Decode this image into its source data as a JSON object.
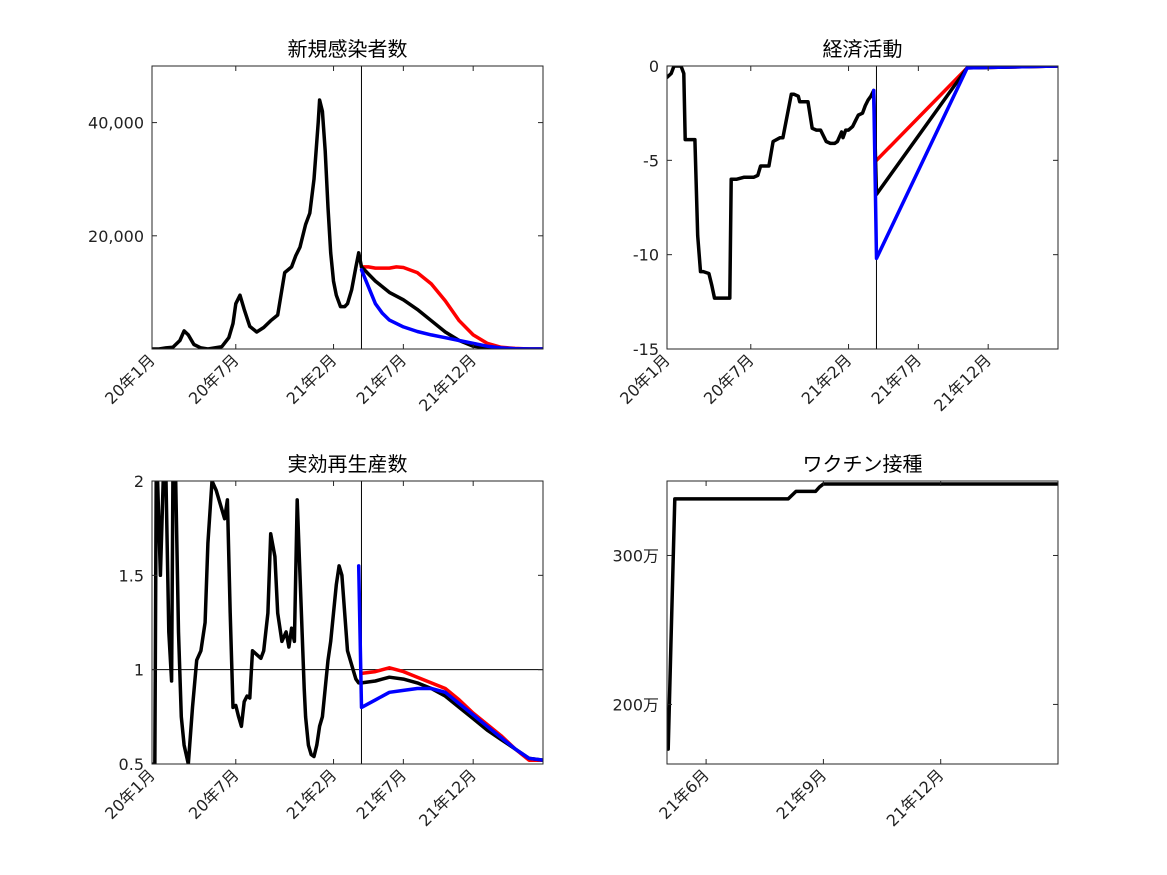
{
  "figure": {
    "background": "#ffffff"
  },
  "colors": {
    "black_series": "#000000",
    "red_series": "#ff0000",
    "blue_series": "#0000ff"
  },
  "chart_data": [
    {
      "type": "line",
      "title": "新規感染者数",
      "xlabel": "",
      "ylabel": "",
      "xlim": [
        0,
        28
      ],
      "ylim": [
        0,
        50000
      ],
      "grid": false,
      "x_ticks": [
        {
          "value": 0,
          "label": "20年1月"
        },
        {
          "value": 6,
          "label": "20年7月"
        },
        {
          "value": 13,
          "label": "21年2月"
        },
        {
          "value": 18,
          "label": "21年7月"
        },
        {
          "value": 23,
          "label": "21年12月"
        }
      ],
      "y_ticks": [
        {
          "value": 20000,
          "label": "20,000"
        },
        {
          "value": 40000,
          "label": "40,000"
        }
      ],
      "vline": 15,
      "hline": null,
      "series": [
        {
          "color": "#ff0000",
          "x": [
            15,
            15.5,
            16,
            17,
            17.5,
            18,
            19,
            20,
            21,
            22,
            23,
            24,
            25,
            26,
            27,
            28
          ],
          "y": [
            14500,
            14500,
            14300,
            14300,
            14500,
            14400,
            13500,
            11500,
            8500,
            5000,
            2500,
            1000,
            300,
            100,
            0,
            0
          ]
        },
        {
          "color": "#000000",
          "x": [
            0,
            0.5,
            1,
            1.5,
            2,
            2.3,
            2.6,
            3,
            3.5,
            4,
            4.5,
            5,
            5.5,
            5.8,
            6,
            6.3,
            6.6,
            7,
            7.5,
            8,
            8.5,
            9,
            9.5,
            10,
            10.3,
            10.6,
            11,
            11.3,
            11.6,
            11.9,
            12,
            12.2,
            12.4,
            12.6,
            12.8,
            13,
            13.2,
            13.5,
            13.8,
            14,
            14.3,
            14.6,
            14.8,
            15,
            16,
            17,
            18,
            19,
            20,
            21,
            22,
            23,
            24,
            25,
            26,
            27,
            28
          ],
          "y": [
            0,
            0,
            200,
            300,
            1500,
            3200,
            2500,
            800,
            200,
            0,
            200,
            400,
            2000,
            4500,
            8000,
            9500,
            7000,
            4000,
            3000,
            3800,
            5000,
            6000,
            13500,
            14500,
            16500,
            18000,
            22000,
            24000,
            30000,
            40000,
            44000,
            42000,
            35000,
            25000,
            17000,
            12000,
            9500,
            7500,
            7500,
            8000,
            10500,
            14500,
            17000,
            14500,
            12000,
            10000,
            8700,
            7000,
            5000,
            3000,
            1500,
            500,
            200,
            50,
            0,
            0,
            0
          ]
        },
        {
          "color": "#0000ff",
          "x": [
            15,
            15.5,
            16,
            16.5,
            17,
            18,
            19,
            20,
            21,
            22,
            23,
            24,
            25,
            26,
            27,
            28
          ],
          "y": [
            14000,
            11000,
            8000,
            6300,
            5100,
            3900,
            3100,
            2500,
            2000,
            1500,
            1000,
            500,
            200,
            50,
            0,
            0
          ]
        }
      ]
    },
    {
      "type": "line",
      "title": "経済活動",
      "xlabel": "",
      "ylabel": "",
      "xlim": [
        0,
        28
      ],
      "ylim": [
        -15,
        0
      ],
      "grid": false,
      "x_ticks": [
        {
          "value": 0,
          "label": "20年1月"
        },
        {
          "value": 6,
          "label": "20年7月"
        },
        {
          "value": 13,
          "label": "21年2月"
        },
        {
          "value": 18,
          "label": "21年7月"
        },
        {
          "value": 23,
          "label": "21年12月"
        }
      ],
      "y_ticks": [
        {
          "value": -15,
          "label": "-15"
        },
        {
          "value": -10,
          "label": "-10"
        },
        {
          "value": -5,
          "label": "-5"
        },
        {
          "value": 0,
          "label": "0"
        }
      ],
      "vline": 15,
      "hline": null,
      "series": [
        {
          "color": "#ff0000",
          "x": [
            15,
            21.5,
            28
          ],
          "y": [
            -5,
            -0.1,
            0
          ]
        },
        {
          "color": "#000000",
          "x": [
            0,
            0.3,
            0.5,
            1,
            1.2,
            1.3,
            2,
            2.2,
            2.4,
            2.6,
            3,
            3.2,
            3.4,
            3.6,
            4.5,
            4.6,
            5,
            5.5,
            6.2,
            6.5,
            6.7,
            7.3,
            7.6,
            8.1,
            8.3,
            8.9,
            9.1,
            9.4,
            9.5,
            10.1,
            10.4,
            10.7,
            11,
            11.4,
            11.7,
            12,
            12.2,
            12.5,
            12.6,
            12.8,
            13,
            13.3,
            13.5,
            13.7,
            14,
            14.2,
            14.4,
            14.6,
            14.8,
            15,
            21.5,
            28
          ],
          "y": [
            -0.6,
            -0.4,
            0,
            0,
            -0.4,
            -3.9,
            -3.9,
            -9,
            -10.9,
            -10.9,
            -11,
            -11.6,
            -12.3,
            -12.3,
            -12.3,
            -6,
            -6,
            -5.9,
            -5.9,
            -5.8,
            -5.3,
            -5.3,
            -4,
            -3.8,
            -3.8,
            -1.5,
            -1.5,
            -1.6,
            -1.9,
            -1.9,
            -3.3,
            -3.4,
            -3.4,
            -4,
            -4.1,
            -4.1,
            -4,
            -3.5,
            -3.8,
            -3.4,
            -3.4,
            -3.2,
            -2.9,
            -2.6,
            -2.5,
            -2.1,
            -1.8,
            -1.6,
            -1.3,
            -6.8,
            -0.1,
            0
          ]
        },
        {
          "color": "#0000ff",
          "x": [
            14.8,
            15,
            21.5,
            28
          ],
          "y": [
            -1.3,
            -10.2,
            -0.1,
            0
          ]
        }
      ]
    },
    {
      "type": "line",
      "title": "実効再生産数",
      "xlabel": "",
      "ylabel": "",
      "xlim": [
        0,
        28
      ],
      "ylim": [
        0.5,
        2
      ],
      "grid": false,
      "x_ticks": [
        {
          "value": 0,
          "label": "20年1月"
        },
        {
          "value": 6,
          "label": "20年7月"
        },
        {
          "value": 13,
          "label": "21年2月"
        },
        {
          "value": 18,
          "label": "21年7月"
        },
        {
          "value": 23,
          "label": "21年12月"
        }
      ],
      "y_ticks": [
        {
          "value": 0.5,
          "label": "0.5"
        },
        {
          "value": 1,
          "label": "1"
        },
        {
          "value": 1.5,
          "label": "1.5"
        },
        {
          "value": 2,
          "label": "2"
        }
      ],
      "vline": 15,
      "hline": 1,
      "series": [
        {
          "color": "#ff0000",
          "x": [
            15,
            16,
            17,
            18,
            19,
            20,
            21,
            22,
            23,
            24,
            25,
            26,
            27,
            28
          ],
          "y": [
            0.98,
            0.99,
            1.01,
            0.99,
            0.96,
            0.93,
            0.9,
            0.84,
            0.77,
            0.71,
            0.65,
            0.58,
            0.52,
            0.52
          ]
        },
        {
          "color": "#000000",
          "x": [
            0,
            0.2,
            0.3,
            0.4,
            0.6,
            0.8,
            1,
            1.2,
            1.4,
            1.5,
            1.7,
            1.9,
            2.1,
            2.3,
            2.6,
            2.9,
            3.2,
            3.5,
            3.8,
            4,
            4.3,
            4.6,
            5,
            5.2,
            5.4,
            5.6,
            5.8,
            6,
            6.2,
            6.4,
            6.6,
            6.8,
            7,
            7.2,
            7.5,
            7.8,
            8,
            8.3,
            8.5,
            8.8,
            9,
            9.3,
            9.6,
            9.8,
            10,
            10.2,
            10.4,
            10.6,
            10.8,
            10.9,
            11,
            11.2,
            11.4,
            11.6,
            11.8,
            12,
            12.2,
            12.4,
            12.6,
            12.8,
            13,
            13.2,
            13.4,
            13.6,
            13.8,
            14,
            14.2,
            14.4,
            14.6,
            14.8,
            15,
            16,
            17,
            18,
            19,
            20,
            21,
            22,
            23,
            24,
            25,
            26,
            27,
            28
          ],
          "y": [
            0.5,
            0.45,
            2,
            2,
            1.5,
            2,
            2,
            1.2,
            0.94,
            2,
            2,
            1.2,
            0.75,
            0.6,
            0.5,
            0.8,
            1.05,
            1.1,
            1.25,
            1.67,
            2,
            1.95,
            1.85,
            1.8,
            1.9,
            1.3,
            0.8,
            0.81,
            0.75,
            0.7,
            0.83,
            0.86,
            0.85,
            1.1,
            1.08,
            1.06,
            1.1,
            1.3,
            1.72,
            1.6,
            1.3,
            1.15,
            1.2,
            1.12,
            1.22,
            1.15,
            1.9,
            1.5,
            1.1,
            0.9,
            0.75,
            0.6,
            0.55,
            0.54,
            0.6,
            0.7,
            0.75,
            0.9,
            1.05,
            1.15,
            1.3,
            1.45,
            1.55,
            1.5,
            1.3,
            1.1,
            1.05,
            1,
            0.95,
            0.93,
            0.93,
            0.94,
            0.96,
            0.95,
            0.93,
            0.9,
            0.86,
            0.8,
            0.74,
            0.68,
            0.63,
            0.58,
            0.53,
            0.52
          ]
        },
        {
          "color": "#0000ff",
          "x": [
            14.8,
            15,
            16,
            17,
            18,
            19,
            20,
            21,
            22,
            23,
            24,
            25,
            26,
            27,
            28
          ],
          "y": [
            1.55,
            0.8,
            0.84,
            0.88,
            0.89,
            0.9,
            0.9,
            0.88,
            0.82,
            0.76,
            0.7,
            0.64,
            0.58,
            0.53,
            0.52
          ]
        }
      ]
    },
    {
      "type": "line",
      "title": "ワクチン接種",
      "xlabel": "",
      "ylabel": "",
      "xlim": [
        4,
        14
      ],
      "ylim": [
        1600000,
        3500000
      ],
      "grid": false,
      "x_ticks": [
        {
          "value": 5,
          "label": "21年6月"
        },
        {
          "value": 8,
          "label": "21年9月"
        },
        {
          "value": 11,
          "label": "21年12月"
        }
      ],
      "y_ticks": [
        {
          "value": 2000000,
          "label": "200万"
        },
        {
          "value": 3000000,
          "label": "300万"
        }
      ],
      "vline": null,
      "hline": null,
      "series": [
        {
          "color": "#000000",
          "x": [
            4.03,
            4.1,
            4.2,
            4.3,
            7.1,
            7.3,
            7.8,
            7.9,
            8,
            14
          ],
          "y": [
            1700000,
            2400000,
            3380000,
            3380000,
            3380000,
            3430000,
            3430000,
            3460000,
            3480000,
            3480000
          ]
        }
      ]
    }
  ]
}
